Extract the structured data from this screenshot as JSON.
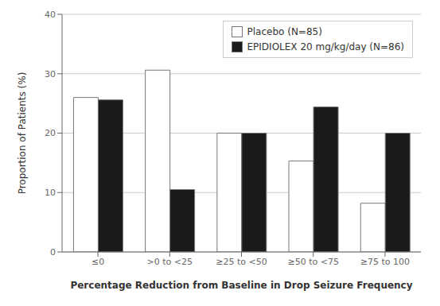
{
  "chart_data": {
    "type": "bar",
    "categories": [
      "≤0",
      ">0 to <25",
      "≥25 to <50",
      "≥50 to <75",
      "≥75 to 100"
    ],
    "series": [
      {
        "name": "Placebo (N=85)",
        "color": "#ffffff",
        "values": [
          26,
          30.6,
          20,
          15.3,
          8.2
        ]
      },
      {
        "name": "EPIDIOLEX 20 mg/kg/day (N=86)",
        "color": "#1a1a1a",
        "values": [
          25.6,
          10.5,
          20,
          24.4,
          20
        ]
      }
    ],
    "xlabel": "Percentage Reduction from Baseline in Drop Seizure Frequency",
    "ylabel": "Proportion of Patients (%)",
    "ylim": [
      0,
      40
    ],
    "yticks": [
      0,
      10,
      20,
      30,
      40
    ],
    "grid": true,
    "legend": "upper right"
  }
}
